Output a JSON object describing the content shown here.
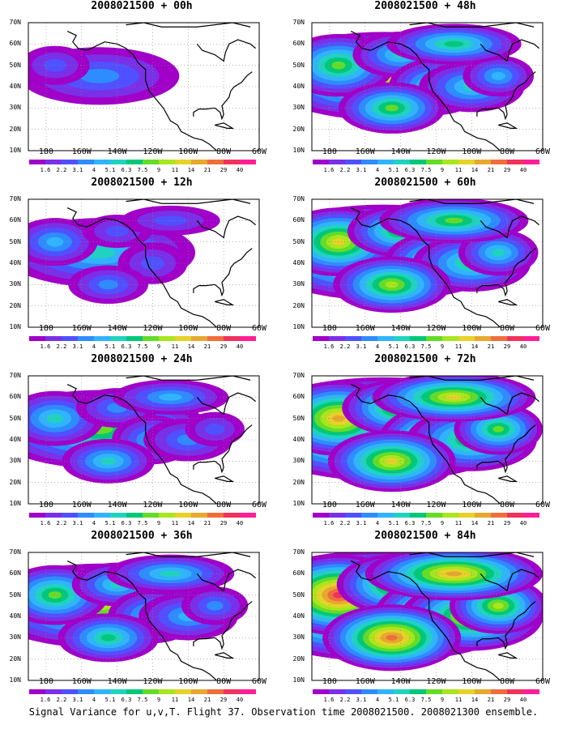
{
  "caption": "Signal Variance for u,v,T. Flight 37. Observation time 2008021500. 2008021300 ensemble.",
  "lat_labels": [
    "70N",
    "60N",
    "50N",
    "40N",
    "30N",
    "20N",
    "10N"
  ],
  "lon_labels": [
    "180",
    "160W",
    "140W",
    "120W",
    "100W",
    "80W",
    "60W"
  ],
  "colorbar": {
    "labels": [
      "1.6",
      "2.2",
      "3.1",
      "4",
      "5.1",
      "6.3",
      "7.5",
      "9",
      "11",
      "14",
      "21",
      "29",
      "40"
    ],
    "colors": [
      "#a000c8",
      "#7a30e6",
      "#5050ff",
      "#2e8cff",
      "#30b4ff",
      "#20d2c0",
      "#00c878",
      "#64dc28",
      "#a8e61e",
      "#e6d228",
      "#e6a82e",
      "#f06e3c",
      "#f0325a",
      "#ff1e96"
    ]
  },
  "colors": {
    "background": "#a000c8",
    "land_outline": "#000000",
    "grid": "#888888"
  },
  "panels": [
    {
      "id": "00h",
      "title": "2008021500 + 00h",
      "level": 0.15
    },
    {
      "id": "48h",
      "title": "2008021500 + 48h",
      "level": 0.55
    },
    {
      "id": "12h",
      "title": "2008021500 + 12h",
      "level": 0.3
    },
    {
      "id": "60h",
      "title": "2008021500 + 60h",
      "level": 0.65
    },
    {
      "id": "24h",
      "title": "2008021500 + 24h",
      "level": 0.42
    },
    {
      "id": "72h",
      "title": "2008021500 + 72h",
      "level": 0.75
    },
    {
      "id": "36h",
      "title": "2008021500 + 36h",
      "level": 0.5
    },
    {
      "id": "84h",
      "title": "2008021500 + 84h",
      "level": 0.85
    }
  ]
}
